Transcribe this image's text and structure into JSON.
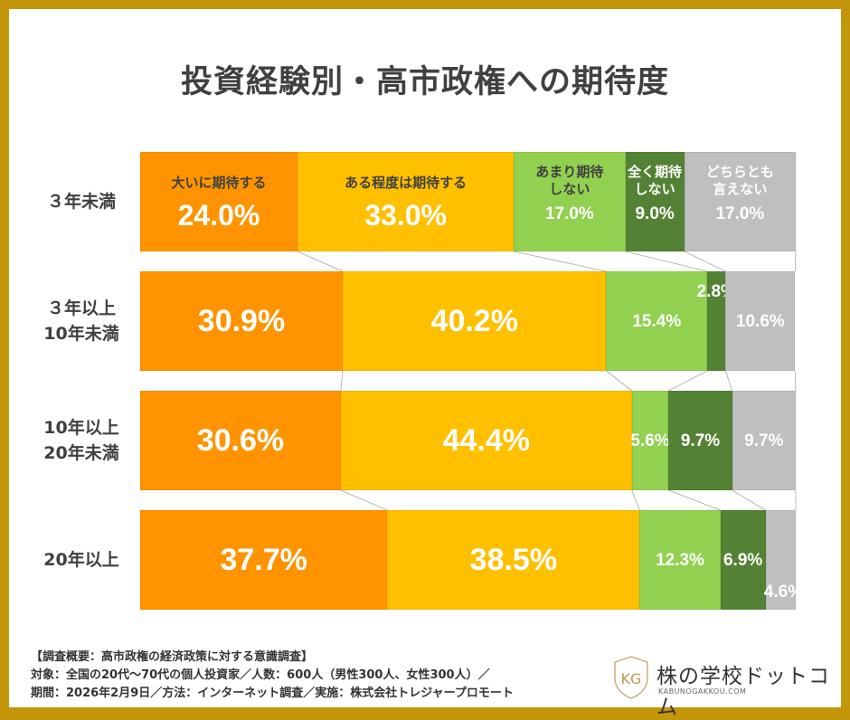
{
  "chart_data": {
    "type": "bar",
    "orientation": "horizontal",
    "stacked": true,
    "title": "投資経験別・高市政権への期待度",
    "categories": [
      "３年未満",
      "３年以上\n10年未満",
      "10年以上\n20年未満",
      "20年以上"
    ],
    "series": [
      {
        "name": "大いに期待する",
        "color": "#FF9400",
        "values": [
          24.0,
          30.9,
          30.6,
          37.7
        ]
      },
      {
        "name": "ある程度は期待する",
        "color": "#FFC000",
        "values": [
          33.0,
          40.2,
          44.4,
          38.5
        ]
      },
      {
        "name": "あまり期待\nしない",
        "color": "#92D050",
        "values": [
          17.0,
          15.4,
          5.6,
          12.3
        ]
      },
      {
        "name": "全く期待\nしない",
        "color": "#548235",
        "values": [
          9.0,
          2.8,
          9.7,
          6.9
        ]
      },
      {
        "name": "どちらとも\n言えない",
        "color": "#BFBFBF",
        "values": [
          17.0,
          10.6,
          9.7,
          4.6
        ]
      }
    ],
    "xlim": [
      0,
      100
    ],
    "legend": "inside first bar"
  },
  "footer": {
    "line1": "【調査概要：高市政権の経済政策に対する意識調査】",
    "line2": "対象：全国の20代～70代の個人投資家／人数：600人（男性300人、女性300人）／",
    "line3": "期間：2026年2月9日／方法：インターネット調査／実施：株式会社トレジャープロモート"
  },
  "logo": {
    "name": "株の学校ドットコム",
    "url": "KABUNOGAKKOU.COM",
    "mark": "KG"
  },
  "colors": {
    "frame": "#C4960A"
  }
}
